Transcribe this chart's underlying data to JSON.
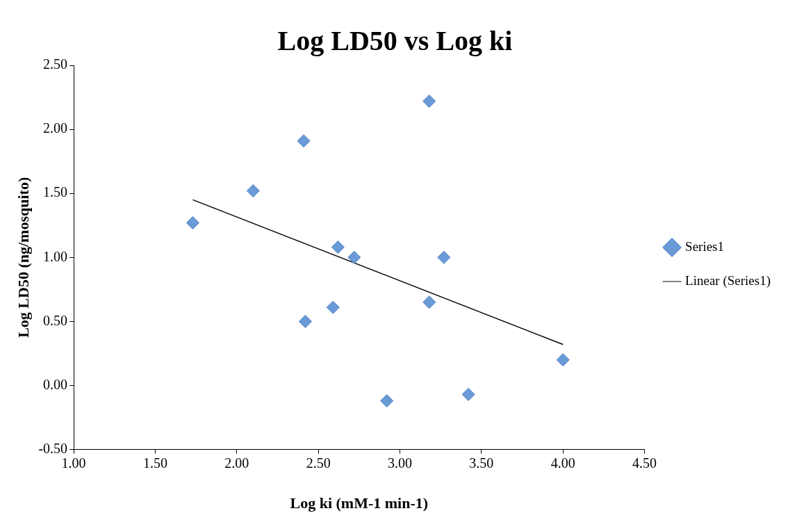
{
  "chart_data": {
    "type": "scatter",
    "title": "Log LD50 vs Log ki",
    "xlabel": "Log ki (mM-1 min-1)",
    "ylabel": "Log LD50 (ng/mosquito)",
    "series": [
      {
        "name": "Series1",
        "type": "scatter",
        "color": "#6a9bd8",
        "marker": "diamond",
        "x": [
          1.73,
          2.1,
          2.41,
          2.42,
          2.59,
          2.62,
          2.72,
          2.92,
          3.18,
          3.18,
          3.27,
          3.42,
          4.0
        ],
        "values": [
          1.27,
          1.52,
          1.91,
          0.5,
          0.61,
          1.08,
          1.0,
          -0.12,
          2.22,
          0.65,
          1.0,
          -0.07,
          0.2
        ]
      },
      {
        "name": "Linear (Series1)",
        "type": "line",
        "color": "#000000",
        "marker": "none",
        "x": [
          1.73,
          4.0
        ],
        "values": [
          1.45,
          0.32
        ]
      }
    ],
    "xlim": [
      1.0,
      4.5
    ],
    "xticks": [
      {
        "value": 1.0,
        "label": "1.00"
      },
      {
        "value": 1.5,
        "label": "1.50"
      },
      {
        "value": 2.0,
        "label": "2.00"
      },
      {
        "value": 2.5,
        "label": "2.50"
      },
      {
        "value": 3.0,
        "label": "3.00"
      },
      {
        "value": 3.5,
        "label": "3.50"
      },
      {
        "value": 4.0,
        "label": "4.00"
      },
      {
        "value": 4.5,
        "label": "4.50"
      }
    ],
    "ylim": [
      -0.5,
      2.5
    ],
    "yticks": [
      {
        "value": -0.5,
        "label": "-0.50"
      },
      {
        "value": 0.0,
        "label": "0.00"
      },
      {
        "value": 0.5,
        "label": "0.50"
      },
      {
        "value": 1.0,
        "label": "1.00"
      },
      {
        "value": 1.5,
        "label": "1.50"
      },
      {
        "value": 2.0,
        "label": "2.00"
      },
      {
        "value": 2.5,
        "label": "2.50"
      }
    ],
    "grid": false,
    "legend": "right"
  }
}
